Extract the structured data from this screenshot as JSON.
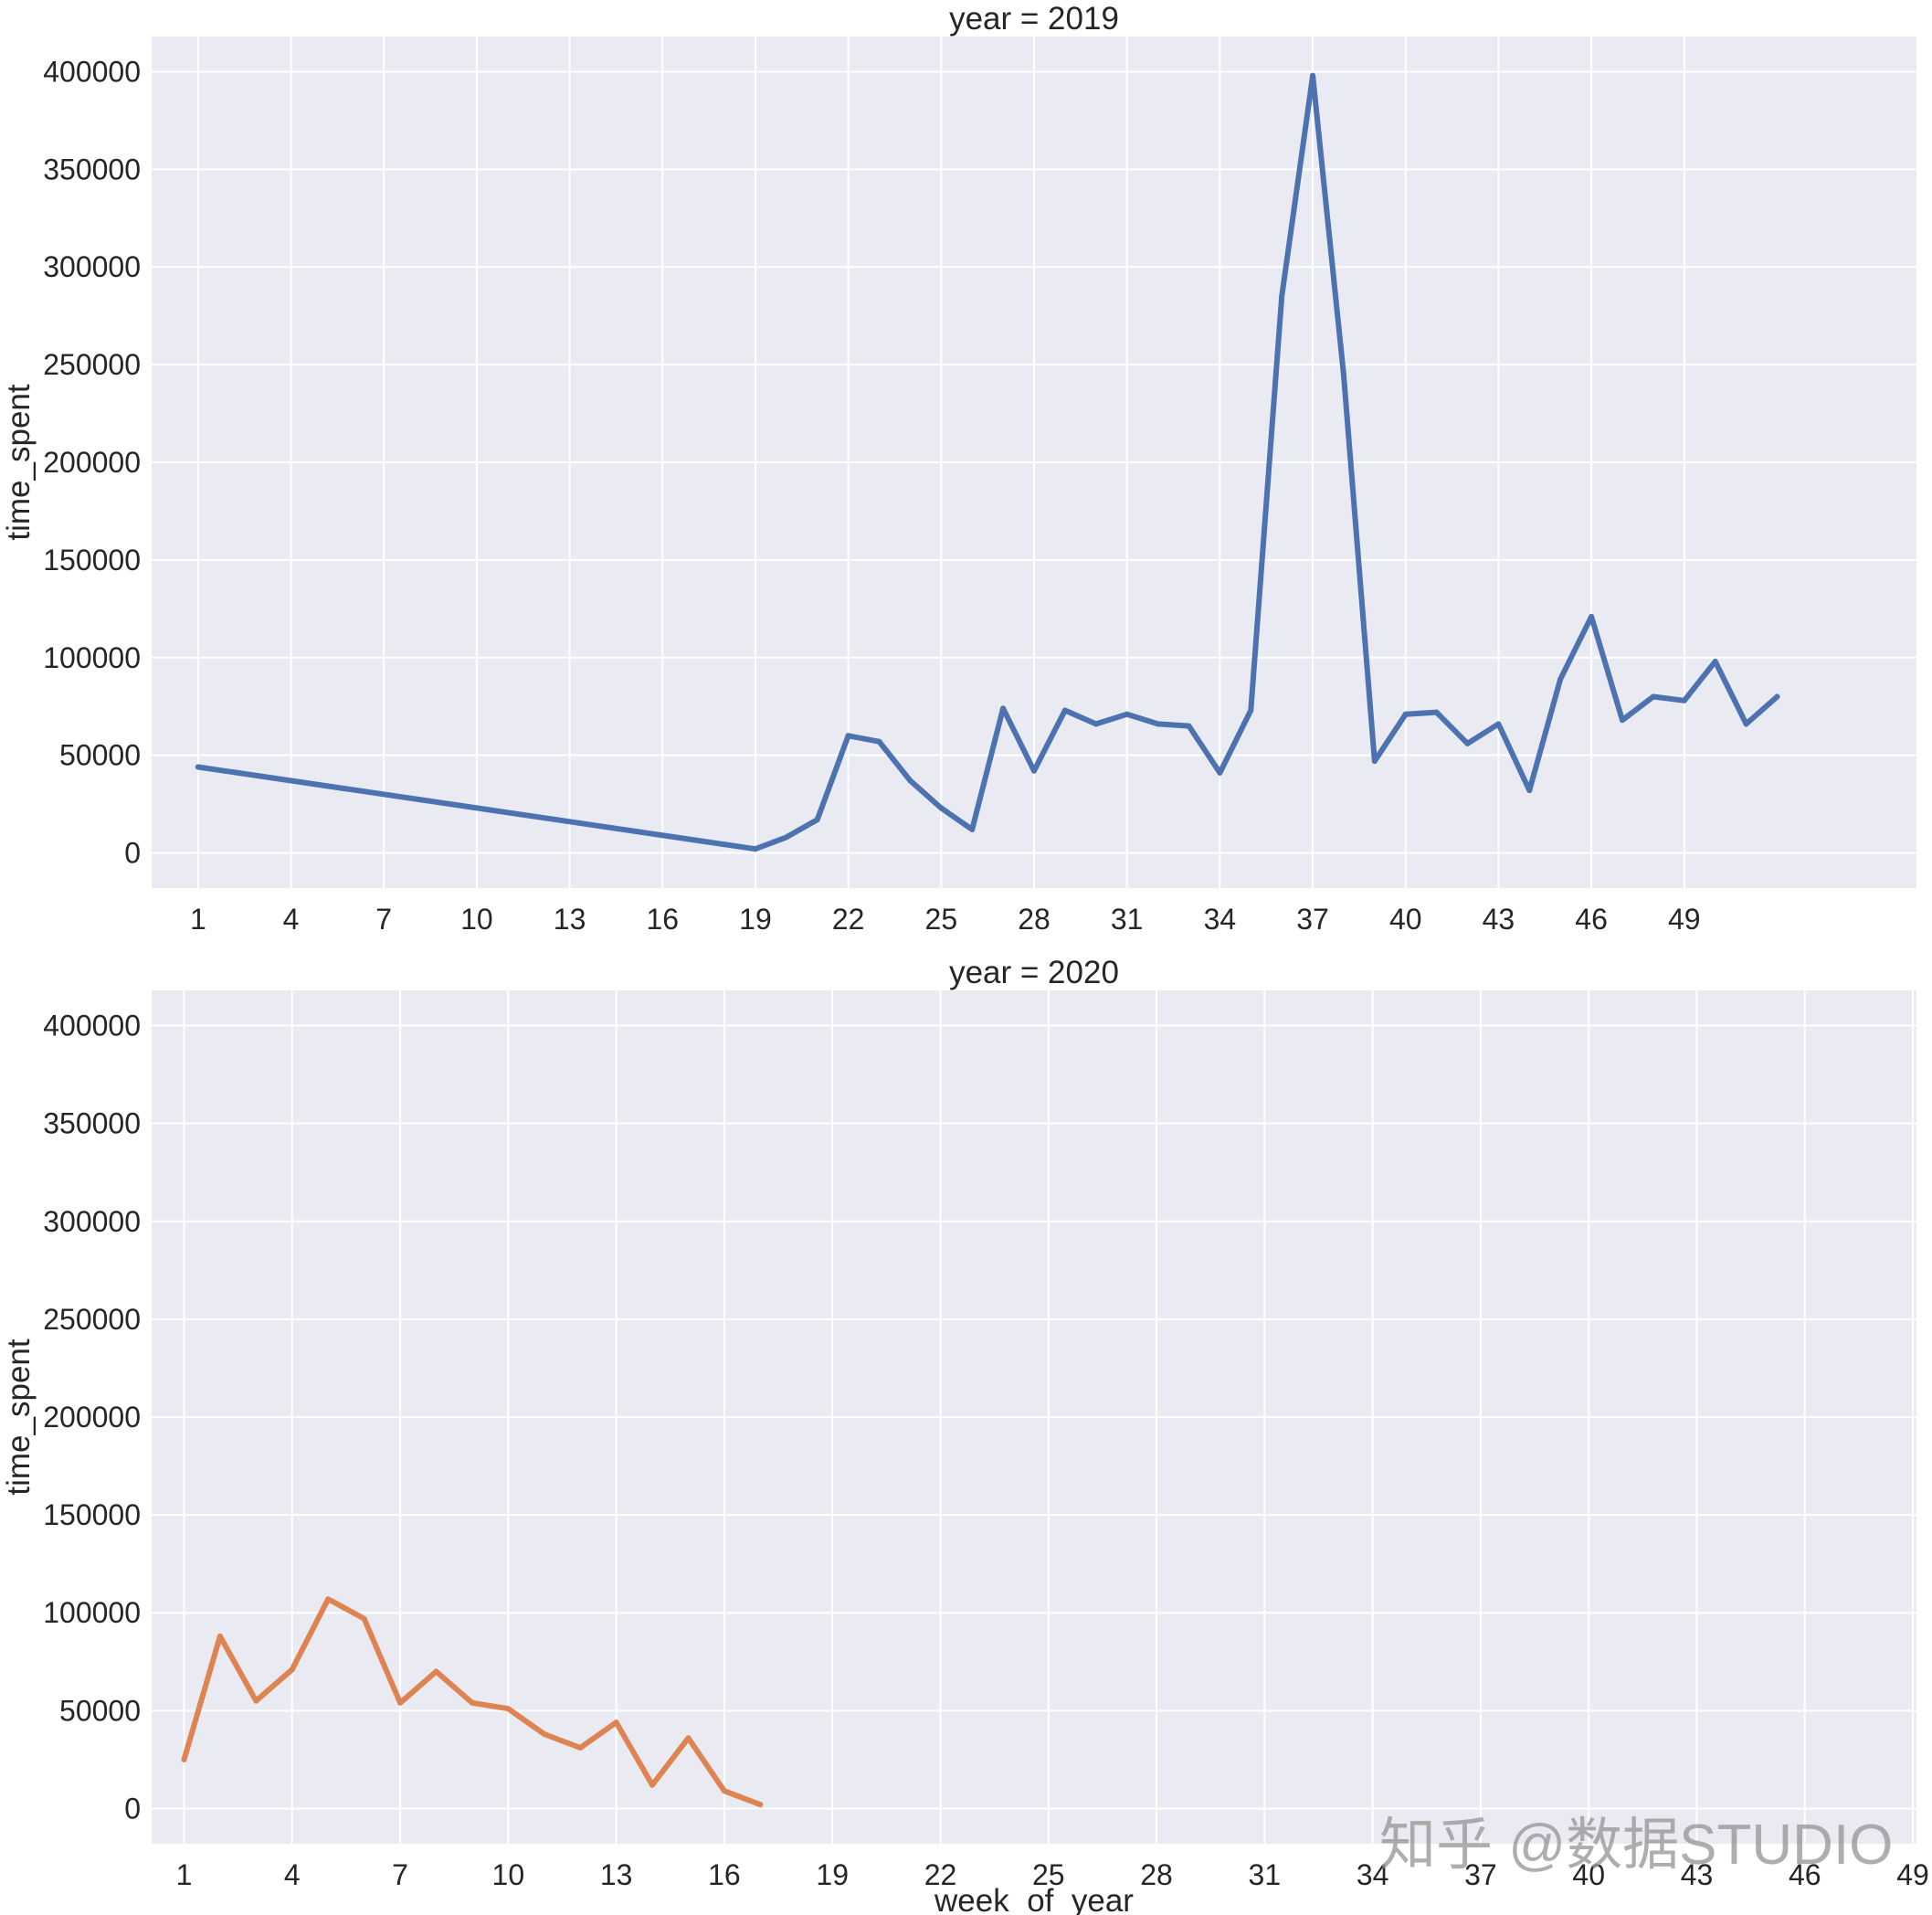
{
  "chart_data": [
    {
      "type": "line",
      "title": "year = 2019",
      "xlabel": "",
      "ylabel": "time_spent",
      "ylim": [
        -18000,
        418000
      ],
      "yticks": [
        0,
        50000,
        100000,
        150000,
        200000,
        250000,
        300000,
        350000,
        400000
      ],
      "xlim": [
        -0.5,
        56.5
      ],
      "xticks": [
        1,
        4,
        7,
        10,
        13,
        16,
        19,
        22,
        25,
        28,
        31,
        34,
        37,
        40,
        43,
        46,
        49
      ],
      "grid": true,
      "color": "#4c72b0",
      "x": [
        1,
        19,
        20,
        21,
        22,
        23,
        24,
        25,
        26,
        27,
        28,
        29,
        30,
        31,
        32,
        33,
        34,
        35,
        36,
        37,
        38,
        39,
        40,
        41,
        42,
        43,
        44,
        45,
        46,
        47,
        48,
        49,
        50,
        51,
        52
      ],
      "y": [
        44000,
        2000,
        8000,
        17000,
        60000,
        57000,
        37000,
        23000,
        12000,
        74000,
        42000,
        73000,
        66000,
        71000,
        66000,
        65000,
        41000,
        73000,
        285000,
        398000,
        245000,
        47000,
        71000,
        72000,
        56000,
        66000,
        32000,
        89000,
        121000,
        68000,
        80000,
        78000,
        98000,
        66000,
        80000
      ]
    },
    {
      "type": "line",
      "title": "year = 2020",
      "xlabel": "week_of_year",
      "ylabel": "time_spent",
      "ylim": [
        -18000,
        418000
      ],
      "yticks": [
        0,
        50000,
        100000,
        150000,
        200000,
        250000,
        300000,
        350000,
        400000
      ],
      "xlim": [
        0.1,
        49.1
      ],
      "xticks": [
        1,
        4,
        7,
        10,
        13,
        16,
        19,
        22,
        25,
        28,
        31,
        34,
        37,
        40,
        43,
        46,
        49
      ],
      "grid": true,
      "color": "#dd8452",
      "x": [
        1,
        2,
        3,
        4,
        5,
        6,
        7,
        8,
        9,
        10,
        11,
        12,
        13,
        14,
        15,
        16,
        17
      ],
      "y": [
        25000,
        88000,
        55000,
        71000,
        107000,
        97000,
        54000,
        70000,
        54000,
        51000,
        38000,
        31000,
        44000,
        12000,
        36000,
        9000,
        2000
      ]
    }
  ],
  "watermark": "知乎 @数据STUDIO"
}
